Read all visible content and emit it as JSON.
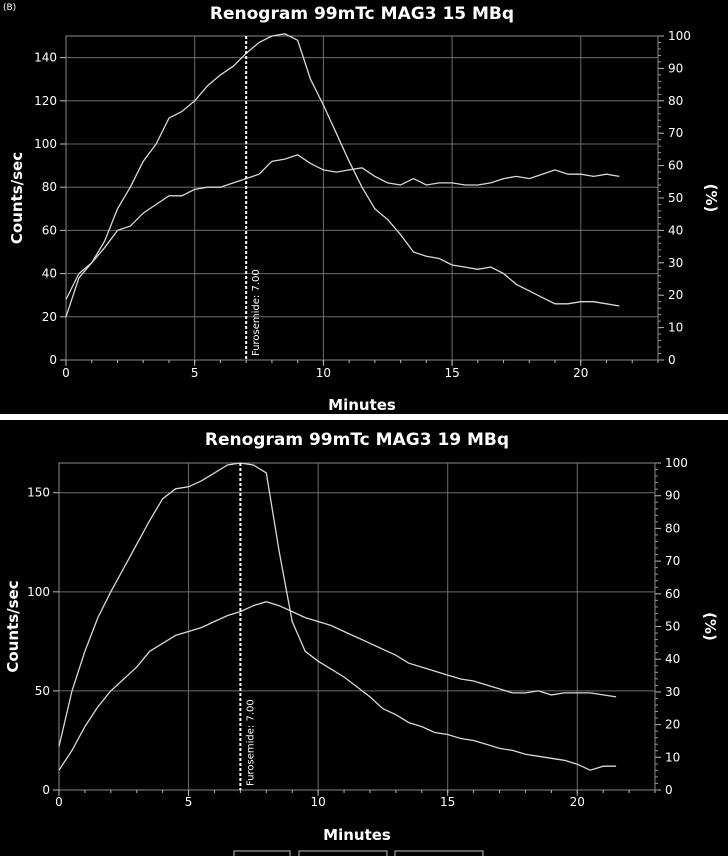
{
  "panel_label": "(B)",
  "chart_data": [
    {
      "type": "line",
      "title": "Renogram 99mTc MAG3 15 MBq",
      "xlabel": "Minutes",
      "ylabel": "Counts/sec",
      "y2label": "(%)",
      "xlim": [
        0,
        23
      ],
      "ylim": [
        0,
        150
      ],
      "y2lim": [
        0,
        100
      ],
      "xticks": [
        0,
        5,
        10,
        15,
        20
      ],
      "yticks": [
        0,
        20,
        40,
        60,
        80,
        100,
        120,
        140
      ],
      "y2ticks": [
        0,
        10,
        20,
        30,
        40,
        50,
        60,
        70,
        80,
        90,
        100
      ],
      "grid": true,
      "annotation": {
        "x": 7.0,
        "text": "Furosemide: 7.00"
      },
      "series": [
        {
          "x": [
            0,
            0.5,
            1,
            1.5,
            2,
            2.5,
            3,
            3.5,
            4,
            4.5,
            5,
            5.5,
            6,
            6.5,
            7,
            7.5,
            8,
            8.5,
            9,
            9.5,
            10,
            10.5,
            11,
            11.5,
            12,
            12.5,
            13,
            13.5,
            14,
            14.5,
            15,
            15.5,
            16,
            16.5,
            17,
            17.5,
            18,
            18.5,
            19,
            19.5,
            20,
            20.5,
            21,
            21.5
          ],
          "values": [
            20,
            38,
            45,
            55,
            70,
            80,
            92,
            100,
            112,
            115,
            120,
            127,
            132,
            136,
            142,
            147,
            150,
            151,
            148,
            130,
            118,
            105,
            92,
            80,
            70,
            65,
            58,
            50,
            48,
            47,
            44,
            43,
            42,
            43,
            40,
            35,
            32,
            29,
            26,
            26,
            27,
            27,
            26,
            25
          ]
        },
        {
          "x": [
            0,
            0.5,
            1,
            1.5,
            2,
            2.5,
            3,
            3.5,
            4,
            4.5,
            5,
            5.5,
            6,
            6.5,
            7,
            7.5,
            8,
            8.5,
            9,
            9.5,
            10,
            10.5,
            11,
            11.5,
            12,
            12.5,
            13,
            13.5,
            14,
            14.5,
            15,
            15.5,
            16,
            16.5,
            17,
            17.5,
            18,
            18.5,
            19,
            19.5,
            20,
            20.5,
            21,
            21.5
          ],
          "values": [
            28,
            40,
            45,
            52,
            60,
            62,
            68,
            72,
            76,
            76,
            79,
            80,
            80,
            82,
            84,
            86,
            92,
            93,
            95,
            91,
            88,
            87,
            88,
            89,
            85,
            82,
            81,
            84,
            81,
            82,
            82,
            81,
            81,
            82,
            84,
            85,
            84,
            86,
            88,
            86,
            86,
            85,
            86,
            85
          ]
        }
      ]
    },
    {
      "type": "line",
      "title": "Renogram 99mTc MAG3 19 MBq",
      "xlabel": "Minutes",
      "ylabel": "Counts/sec",
      "y2label": "(%)",
      "xlim": [
        0,
        23
      ],
      "ylim": [
        0,
        165
      ],
      "y2lim": [
        0,
        100
      ],
      "xticks": [
        0,
        5,
        10,
        15,
        20
      ],
      "yticks": [
        0,
        50,
        100,
        150
      ],
      "y2ticks": [
        0,
        10,
        20,
        30,
        40,
        50,
        60,
        70,
        80,
        90,
        100
      ],
      "grid": true,
      "annotation": {
        "x": 7.0,
        "text": "Furosemide: 7.00"
      },
      "series": [
        {
          "x": [
            0,
            0.5,
            1,
            1.5,
            2,
            2.5,
            3,
            3.5,
            4,
            4.5,
            5,
            5.5,
            6,
            6.5,
            7,
            7.5,
            8,
            8.5,
            9,
            9.5,
            10,
            10.5,
            11,
            11.5,
            12,
            12.5,
            13,
            13.5,
            14,
            14.5,
            15,
            15.5,
            16,
            16.5,
            17,
            17.5,
            18,
            18.5,
            19,
            19.5,
            20,
            20.5,
            21,
            21.5
          ],
          "values": [
            22,
            50,
            70,
            87,
            100,
            112,
            124,
            136,
            147,
            152,
            153,
            156,
            160,
            164,
            165,
            164,
            160,
            120,
            85,
            70,
            65,
            61,
            57,
            52,
            47,
            41,
            38,
            34,
            32,
            29,
            28,
            26,
            25,
            23,
            21,
            20,
            18,
            17,
            16,
            15,
            13,
            10,
            12,
            12
          ]
        },
        {
          "x": [
            0,
            0.5,
            1,
            1.5,
            2,
            2.5,
            3,
            3.5,
            4,
            4.5,
            5,
            5.5,
            6,
            6.5,
            7,
            7.5,
            8,
            8.5,
            9,
            9.5,
            10,
            10.5,
            11,
            11.5,
            12,
            12.5,
            13,
            13.5,
            14,
            14.5,
            15,
            15.5,
            16,
            16.5,
            17,
            17.5,
            18,
            18.5,
            19,
            19.5,
            20,
            20.5,
            21,
            21.5
          ],
          "values": [
            10,
            20,
            32,
            42,
            50,
            56,
            62,
            70,
            74,
            78,
            80,
            82,
            85,
            88,
            90,
            93,
            95,
            93,
            90,
            87,
            85,
            83,
            80,
            77,
            74,
            71,
            68,
            64,
            62,
            60,
            58,
            56,
            55,
            53,
            51,
            49,
            49,
            50,
            48,
            49,
            49,
            49,
            48,
            47
          ]
        }
      ]
    }
  ]
}
